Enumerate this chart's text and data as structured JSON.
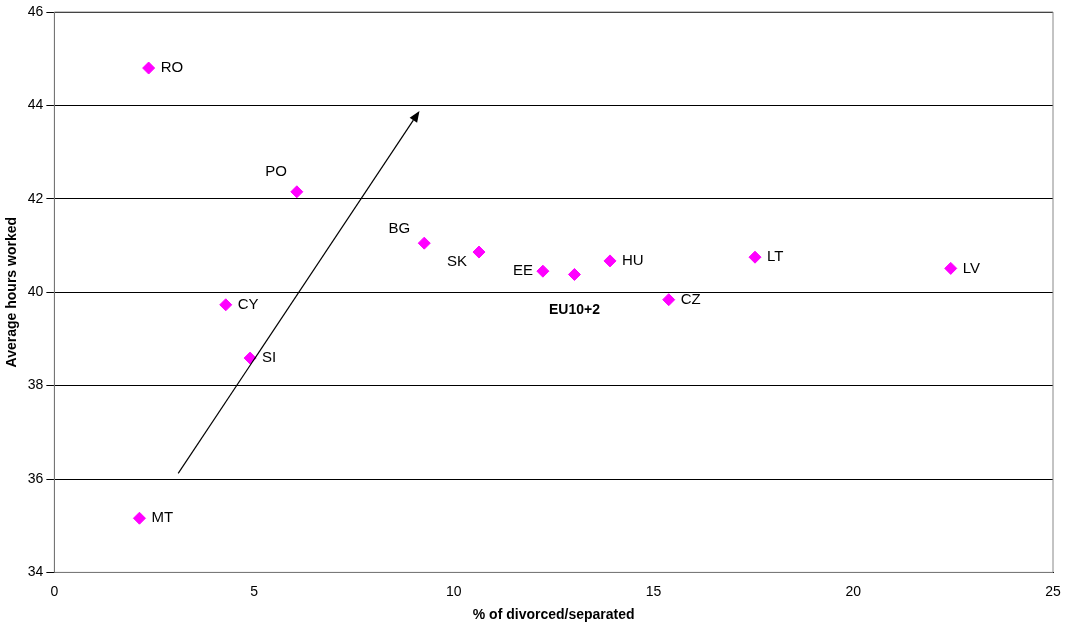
{
  "chart_data": {
    "type": "scatter",
    "xlabel": "% of divorced/separated",
    "ylabel": "Average hours worked",
    "x": [
      2.36,
      6.07,
      9.26,
      10.63,
      12.23,
      13.02,
      13.91,
      15.38,
      17.54,
      22.44,
      4.29,
      4.9,
      2.13
    ],
    "values": [
      44.8,
      42.15,
      41.05,
      40.86,
      40.45,
      40.38,
      40.67,
      39.84,
      40.75,
      40.51,
      39.73,
      38.59,
      35.16
    ],
    "value_labels": [
      "RO",
      "PO",
      "BG",
      "SK",
      "EE",
      "EU10+2",
      "HU",
      "CZ",
      "LT",
      "LV",
      "CY",
      "SI",
      "MT"
    ],
    "color": "#ff00ff",
    "marker": "diamond",
    "xlim": [
      0,
      25
    ],
    "xticks": [
      0,
      5,
      10,
      15,
      20,
      25
    ],
    "ylim": [
      34,
      46
    ],
    "yticks": [
      34,
      36,
      38,
      40,
      42,
      44,
      46
    ],
    "grid": "y",
    "legend": false
  }
}
